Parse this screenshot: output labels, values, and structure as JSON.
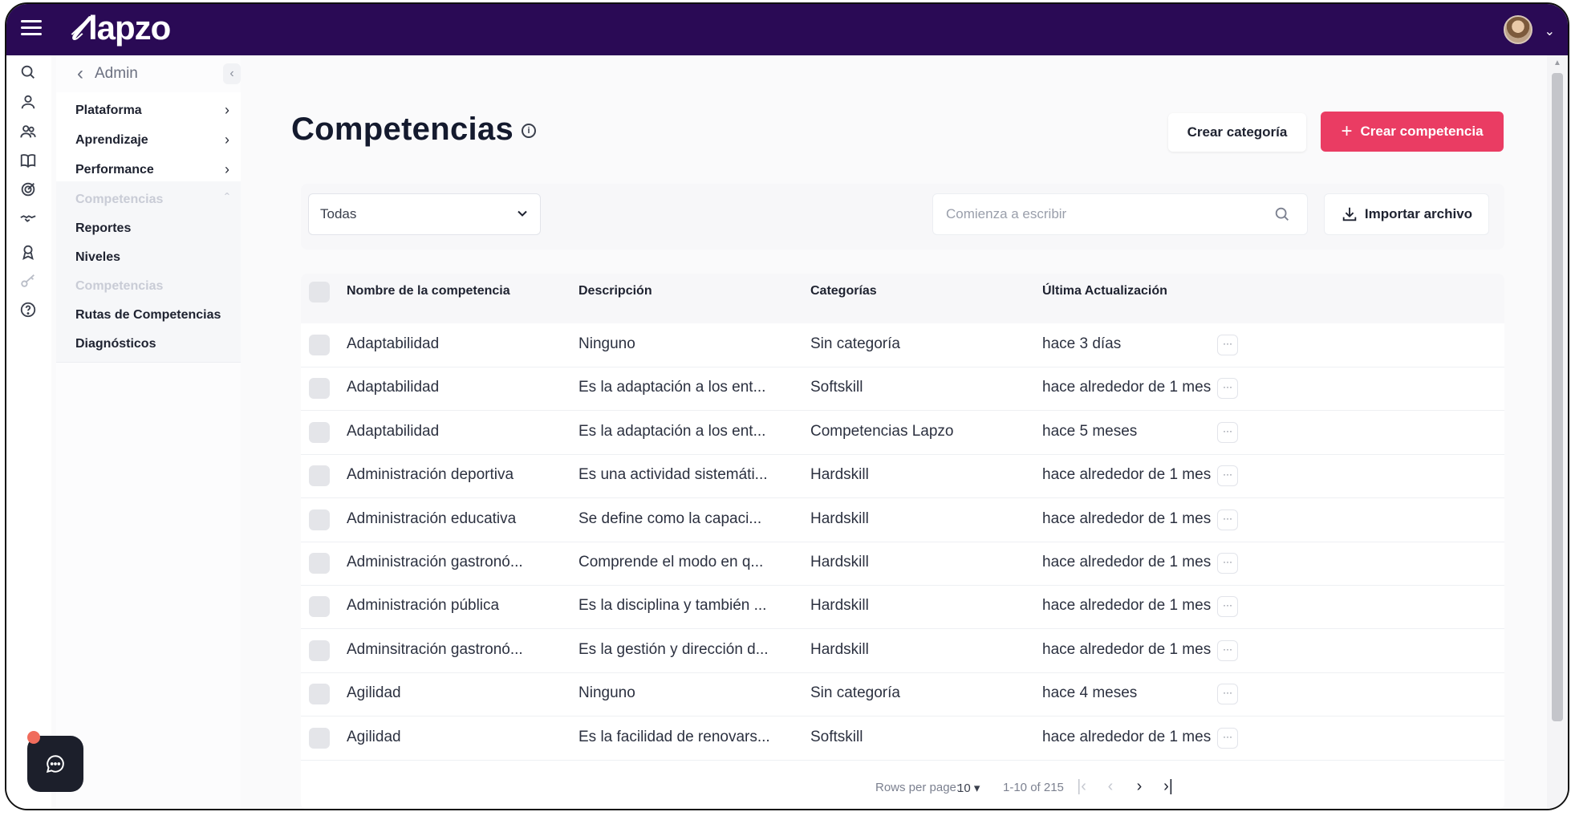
{
  "app": {
    "logo_text": "lapzo",
    "logo_mark": "𝓁"
  },
  "colors": {
    "topbar": "#2a0a55",
    "primary_button": "#ea3c63"
  },
  "icons": [
    "menu-icon",
    "search-icon",
    "user-icon",
    "users-icon",
    "book-icon",
    "target-icon",
    "handshake-icon",
    "award-icon",
    "key-icon",
    "help-icon",
    "info-icon",
    "chevron-down-icon",
    "download-icon",
    "chat-icon"
  ],
  "submenu": {
    "header": "Admin",
    "collapse": "‹",
    "items": [
      {
        "label": "Plataforma",
        "chevron": "›"
      },
      {
        "label": "Aprendizaje",
        "chevron": "›"
      },
      {
        "label": "Performance",
        "chevron": "›"
      },
      {
        "label": "Competencias",
        "chevron": "ˆ"
      },
      {
        "label": "Reportes"
      },
      {
        "label": "Niveles"
      },
      {
        "label": "Competencias"
      },
      {
        "label": "Rutas de Competencias"
      },
      {
        "label": "Diagnósticos"
      }
    ]
  },
  "page": {
    "title": "Competencias",
    "info": "i",
    "create_category": "Crear categoría",
    "create_competency": "Crear competencia",
    "create_plus": "+"
  },
  "filters": {
    "category_selected": "Todas",
    "search_placeholder": "Comienza a escribir",
    "import_label": "Importar archivo"
  },
  "table": {
    "columns": [
      "Nombre de la competencia",
      "Descripción",
      "Categorías",
      "Última Actualización"
    ],
    "rows": [
      {
        "name": "Adaptabilidad",
        "description": "Ninguno",
        "category": "Sin categoría",
        "updated": "hace 3 días"
      },
      {
        "name": "Adaptabilidad",
        "description": "Es la adaptación a los ent...",
        "category": "Softskill",
        "updated": "hace alrededor de 1 mes"
      },
      {
        "name": "Adaptabilidad",
        "description": "Es la adaptación a los ent...",
        "category": "Competencias Lapzo",
        "updated": "hace 5 meses"
      },
      {
        "name": "Administración deportiva",
        "description": "Es una actividad sistemáti...",
        "category": "Hardskill",
        "updated": "hace alrededor de 1 mes"
      },
      {
        "name": "Administración educativa",
        "description": "Se define como la capaci...",
        "category": "Hardskill",
        "updated": "hace alrededor de 1 mes"
      },
      {
        "name": "Administración gastronó...",
        "description": "Comprende el modo en q...",
        "category": "Hardskill",
        "updated": "hace alrededor de 1 mes"
      },
      {
        "name": "Administración pública",
        "description": "Es la disciplina y también ...",
        "category": "Hardskill",
        "updated": "hace alrededor de 1 mes"
      },
      {
        "name": "Adminsitración gastronó...",
        "description": "Es la gestión y dirección d...",
        "category": "Hardskill",
        "updated": "hace alrededor de 1 mes"
      },
      {
        "name": "Agilidad",
        "description": "Ninguno",
        "category": "Sin categoría",
        "updated": "hace 4 meses"
      },
      {
        "name": "Agilidad",
        "description": "Es la facilidad de renovars...",
        "category": "Softskill",
        "updated": "hace alrededor de 1 mes"
      }
    ],
    "row_menu": "···"
  },
  "pagination": {
    "rows_per_page_label": "Rows per page:",
    "rows_per_page": "10",
    "range": "1-10 of 215",
    "first": "|‹",
    "prev": "‹",
    "next": "›",
    "last": "›|"
  }
}
